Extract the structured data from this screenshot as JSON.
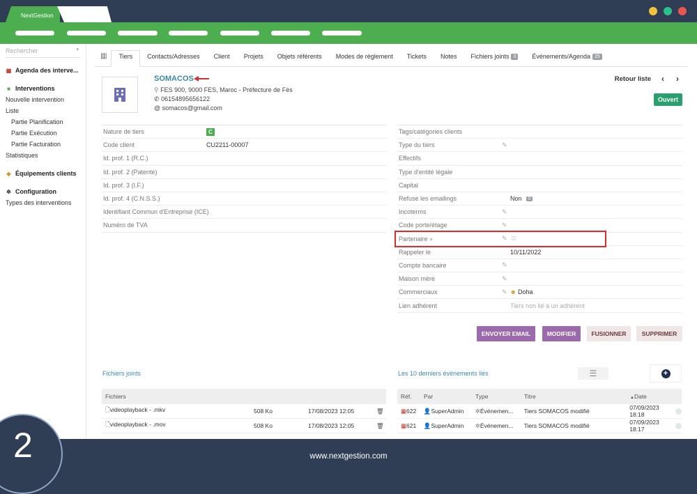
{
  "browser": {
    "tab_title": "NextGestion",
    "dot_colors": [
      "#f3c13a",
      "#2fbf8f",
      "#e8554e"
    ]
  },
  "sidebar": {
    "search_placeholder": "Rechercher",
    "agenda_label": "Agenda des interve...",
    "interventions_label": "Interventions",
    "items": [
      "Nouvelle intervention",
      "Liste"
    ],
    "sub_items": [
      "Partie Planification",
      "Partie Exécution",
      "Partie Facturation"
    ],
    "stats_label": "Statistiques",
    "equipements_label": "Équipements clients",
    "configuration_label": "Configuration",
    "types_label": "Types des interventions"
  },
  "tabs": [
    {
      "label": "Tiers"
    },
    {
      "label": "Contacts/Adresses"
    },
    {
      "label": "Client"
    },
    {
      "label": "Projets"
    },
    {
      "label": "Objets référents"
    },
    {
      "label": "Modes de règlement"
    },
    {
      "label": "Tickets"
    },
    {
      "label": "Notes"
    },
    {
      "label": "Fichiers joints",
      "badge": "3"
    },
    {
      "label": "Événements/Agenda",
      "badge": "25"
    }
  ],
  "company": {
    "name": "SOMACOS",
    "address": "FES 900, 9000 FES, Maroc - Préfecture de Fès",
    "phone": "06154895656122",
    "email": "somacos@gmail.com",
    "status": "Ouvert",
    "back_label": "Retour liste"
  },
  "left_fields": [
    {
      "label": "Nature de tiers",
      "value": "C"
    },
    {
      "label": "Code client",
      "value": "CU2211-00007"
    },
    {
      "label": "Id. prof. 1 (R.C.)",
      "value": ""
    },
    {
      "label": "Id. prof. 2 (Patente)",
      "value": ""
    },
    {
      "label": "Id. prof. 3 (I.F.)",
      "value": ""
    },
    {
      "label": "Id. prof. 4 (C.N.S.S.)",
      "value": ""
    },
    {
      "label": "Identifiant Commun d'Entreprise (ICE)",
      "value": ""
    },
    {
      "label": "Numéro de TVA",
      "value": ""
    }
  ],
  "right_fields": [
    {
      "label": "Tags/catégories clients",
      "value": ""
    },
    {
      "label": "Type du tiers",
      "value": ""
    },
    {
      "label": "Effectifs",
      "value": ""
    },
    {
      "label": "Type d'entité légale",
      "value": ""
    },
    {
      "label": "Capital",
      "value": ""
    },
    {
      "label": "Refuse les emailings",
      "value": "Non",
      "badge": "0"
    },
    {
      "label": "Incoterms",
      "value": ""
    },
    {
      "label": "Code porte/étage",
      "value": ""
    },
    {
      "label": "Partenaire",
      "value": ""
    },
    {
      "label": "Rappeler le",
      "value": "10/11/2022"
    },
    {
      "label": "Compte bancaire",
      "value": ""
    },
    {
      "label": "Maison mère",
      "value": ""
    },
    {
      "label": "Commerciaux",
      "value": "Doha"
    },
    {
      "label": "Lien adhérent",
      "value": "Tiers non lié à un adhérent"
    }
  ],
  "actions": {
    "email": "ENVOYER EMAIL",
    "modify": "MODIFIER",
    "merge": "FUSIONNER",
    "delete": "SUPPRIMER"
  },
  "files": {
    "title": "Fichiers joints",
    "header": "Fichiers",
    "rows": [
      {
        "name": "videoplayback - .mkv",
        "size": "508 Ko",
        "date": "17/08/2023 12:05"
      },
      {
        "name": "videoplayback - .mov",
        "size": "508 Ko",
        "date": "17/08/2023 12:05"
      }
    ]
  },
  "events": {
    "title": "Les 10 derniers événements liés",
    "headers": {
      "ref": "Réf.",
      "par": "Par",
      "type": "Type",
      "titre": "Titre",
      "date": "Date"
    },
    "rows": [
      {
        "ref": "622",
        "par": "SuperAdmin",
        "type": "Événemen...",
        "titre": "Tiers SOMACOS modifié",
        "date": "07/09/2023 18:18"
      },
      {
        "ref": "621",
        "par": "SuperAdmin",
        "type": "Événemen...",
        "titre": "Tiers SOMACOS modifié",
        "date": "07/09/2023 18:17"
      }
    ]
  },
  "footer": {
    "url": "www.nextgestion.com",
    "step": "2"
  }
}
